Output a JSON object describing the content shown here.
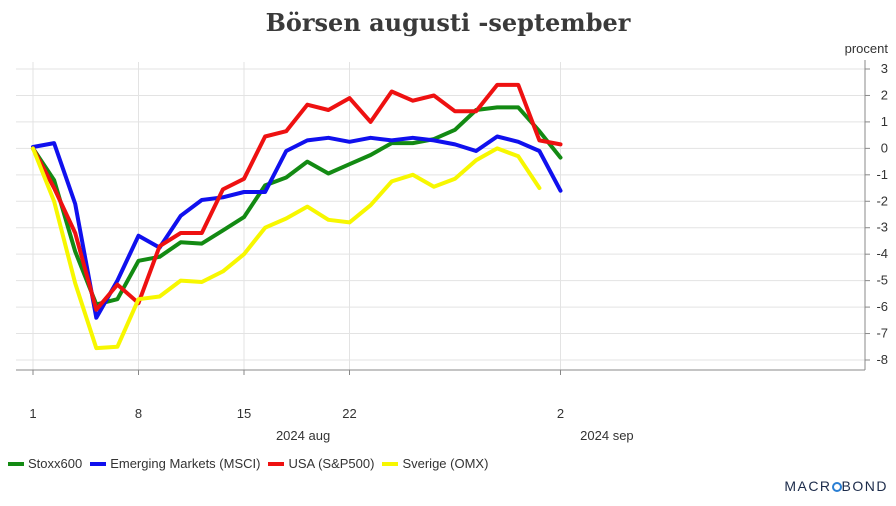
{
  "chart_data": {
    "type": "line",
    "title": "Börsen augusti -september",
    "ylabel": "procent",
    "ylim": [
      -8,
      3
    ],
    "y_ticks": [
      3,
      2,
      1,
      0,
      -1,
      -2,
      -3,
      -4,
      -5,
      -6,
      -7,
      -8
    ],
    "x_ticks": [
      {
        "label": "1",
        "index": 0
      },
      {
        "label": "8",
        "index": 5
      },
      {
        "label": "15",
        "index": 10
      },
      {
        "label": "22",
        "index": 15
      },
      {
        "label": "2",
        "index": 25
      }
    ],
    "period_labels": [
      {
        "label": "2024 aug",
        "index": 12.8
      },
      {
        "label": "2024 sep",
        "index": 27.2
      }
    ],
    "x_count": 29,
    "grid": true,
    "series": [
      {
        "name": "Stoxx600",
        "color": "#138a13",
        "values": [
          0,
          -1.2,
          -3.9,
          -5.9,
          -5.7,
          -4.25,
          -4.1,
          -3.55,
          -3.6,
          -3.1,
          -2.6,
          -1.4,
          -1.1,
          -0.5,
          -0.95,
          -0.6,
          -0.25,
          0.2,
          0.2,
          0.35,
          0.7,
          1.45,
          1.55,
          1.55,
          0.65,
          -0.35
        ]
      },
      {
        "name": "Emerging Markets (MSCI)",
        "color": "#1010ee",
        "values": [
          0.05,
          0.2,
          -2.1,
          -6.4,
          -5.0,
          -3.3,
          -3.75,
          -2.55,
          -1.95,
          -1.85,
          -1.65,
          -1.65,
          -0.1,
          0.3,
          0.4,
          0.25,
          0.4,
          0.3,
          0.4,
          0.3,
          0.15,
          -0.1,
          0.45,
          0.25,
          -0.1,
          -1.6
        ]
      },
      {
        "name": "USA (S&P500)",
        "color": "#ee1111",
        "values": [
          0,
          -1.5,
          -3.2,
          -6.1,
          -5.15,
          -5.85,
          -3.7,
          -3.2,
          -3.2,
          -1.55,
          -1.15,
          0.45,
          0.65,
          1.65,
          1.45,
          1.9,
          1.0,
          2.15,
          1.8,
          2.0,
          1.4,
          1.4,
          2.4,
          2.4,
          0.3,
          0.15
        ]
      },
      {
        "name": "Sverige (OMX)",
        "color": "#f7f700",
        "values": [
          0,
          -2.0,
          -5.1,
          -7.55,
          -7.5,
          -5.7,
          -5.6,
          -5.0,
          -5.05,
          -4.65,
          -4.0,
          -3.0,
          -2.65,
          -2.2,
          -2.7,
          -2.8,
          -2.15,
          -1.25,
          -1.0,
          -1.45,
          -1.15,
          -0.45,
          0.0,
          -0.3,
          -1.5
        ]
      }
    ]
  },
  "branding": {
    "text_before": "MACR",
    "text_after": "BOND"
  }
}
